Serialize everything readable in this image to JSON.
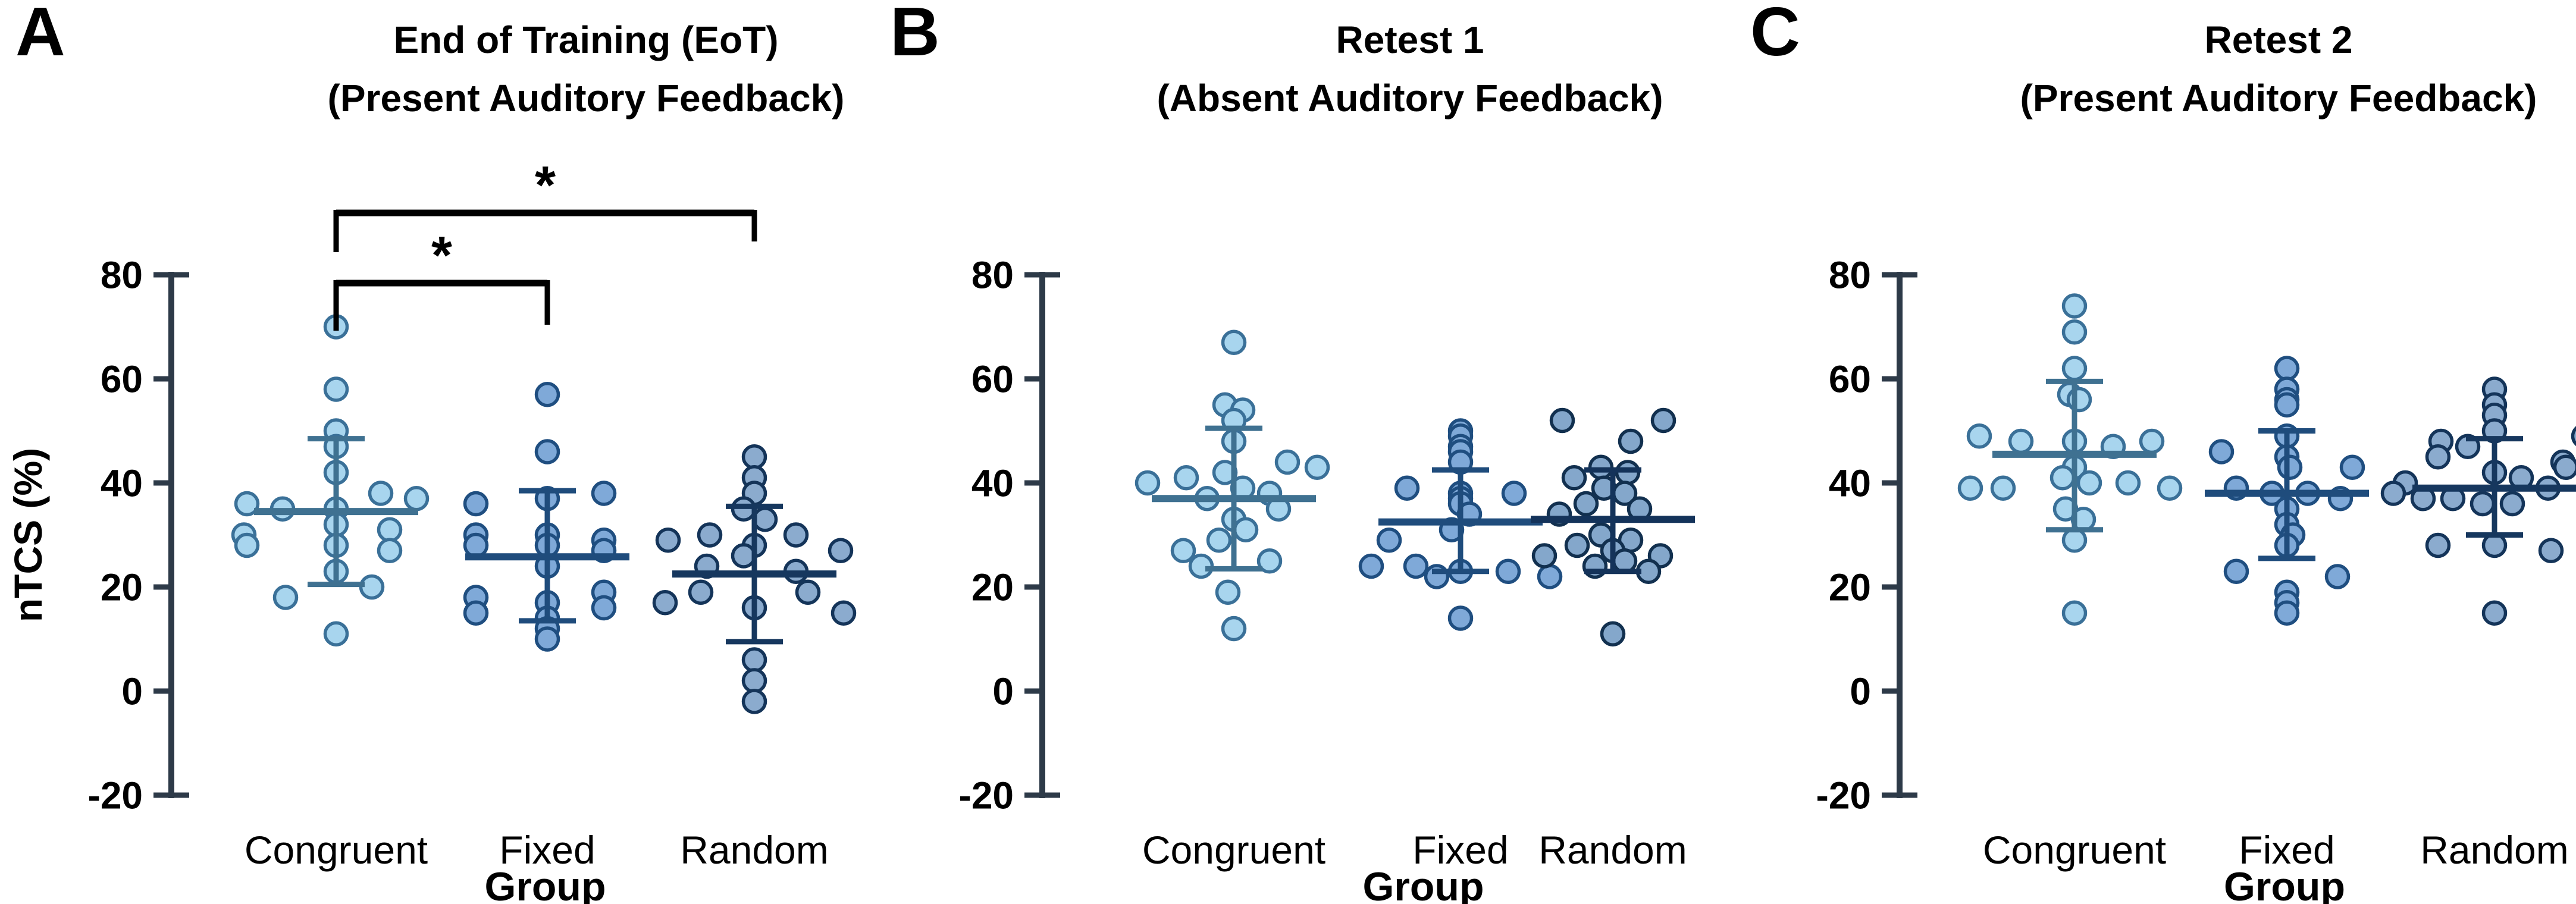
{
  "figure": {
    "background": "#ffffff",
    "axis_color": "#2d3a48",
    "bracket_color": "#000000"
  },
  "chart_data": [
    {
      "type": "scatter",
      "panel_letter": "A",
      "title": "End of Training (EoT)",
      "subtitle": "(Present Auditory Feedback)",
      "xlabel": "Group",
      "ylabel": "nTCS (%)",
      "ylim": [
        -20,
        80
      ],
      "yticks": [
        80,
        60,
        40,
        20,
        0,
        -20
      ],
      "grid": false,
      "categories": [
        "Congruent",
        "Fixed",
        "Random"
      ],
      "axis_color": "#2d3a48",
      "significance": [
        {
          "from": "Congruent",
          "to": "Fixed",
          "label": "*",
          "row": 1
        },
        {
          "from": "Congruent",
          "to": "Random",
          "label": "*",
          "row": 2
        }
      ],
      "series": [
        {
          "name": "Congruent",
          "mean": 34.5,
          "sd_high": 48.5,
          "sd_low": 20.5,
          "fill": "#a8d5ee",
          "stroke": "#3a7098",
          "line": "#3f7191",
          "points": [
            [
              70,
              0
            ],
            [
              58,
              0
            ],
            [
              50,
              0
            ],
            [
              47,
              0
            ],
            [
              42,
              0
            ],
            [
              38,
              75
            ],
            [
              37,
              135
            ],
            [
              36,
              -150
            ],
            [
              35,
              -90
            ],
            [
              35,
              0
            ],
            [
              32,
              0
            ],
            [
              31,
              90
            ],
            [
              30,
              -155
            ],
            [
              28,
              -150
            ],
            [
              28,
              0
            ],
            [
              27,
              90
            ],
            [
              23,
              0
            ],
            [
              20,
              60
            ],
            [
              18,
              -85
            ],
            [
              11,
              0
            ]
          ]
        },
        {
          "name": "Fixed",
          "mean": 25.8,
          "sd_high": 38.5,
          "sd_low": 13.5,
          "fill": "#7fa9d8",
          "stroke": "#1f4e80",
          "line": "#1f4c7c",
          "points": [
            [
              57,
              0
            ],
            [
              46,
              0
            ],
            [
              38,
              95
            ],
            [
              37,
              0
            ],
            [
              36,
              -120
            ],
            [
              30,
              -120
            ],
            [
              30,
              0
            ],
            [
              29,
              95
            ],
            [
              28,
              -120
            ],
            [
              28,
              0
            ],
            [
              27,
              95
            ],
            [
              24,
              0
            ],
            [
              19,
              95
            ],
            [
              18,
              -120
            ],
            [
              17,
              0
            ],
            [
              16,
              95
            ],
            [
              15,
              -120
            ],
            [
              14,
              0
            ],
            [
              12,
              0
            ],
            [
              10,
              0
            ]
          ]
        },
        {
          "name": "Random",
          "mean": 22.5,
          "sd_high": 35.5,
          "sd_low": 9.5,
          "fill": "#8babce",
          "stroke": "#143459",
          "line": "#16375e",
          "points": [
            [
              45,
              0
            ],
            [
              41,
              0
            ],
            [
              38,
              0
            ],
            [
              35,
              -18
            ],
            [
              33,
              18
            ],
            [
              30,
              -75
            ],
            [
              30,
              70
            ],
            [
              29,
              -145
            ],
            [
              28,
              0
            ],
            [
              27,
              145
            ],
            [
              26,
              -18
            ],
            [
              24,
              -80
            ],
            [
              23,
              70
            ],
            [
              19,
              -90
            ],
            [
              19,
              90
            ],
            [
              17,
              -150
            ],
            [
              16,
              0
            ],
            [
              15,
              150
            ],
            [
              6,
              0
            ],
            [
              2,
              0
            ],
            [
              -2,
              0
            ]
          ]
        }
      ]
    },
    {
      "type": "scatter",
      "panel_letter": "B",
      "title": "Retest 1",
      "subtitle": "(Absent Auditory Feedback)",
      "xlabel": "Group",
      "ylabel": "",
      "ylim": [
        -20,
        80
      ],
      "yticks": [
        80,
        60,
        40,
        20,
        0,
        -20
      ],
      "grid": false,
      "categories": [
        "Congruent",
        "Fixed",
        "Random"
      ],
      "axis_color": "#2d3a48",
      "significance": [],
      "series": [
        {
          "name": "Congruent",
          "mean": 37,
          "sd_high": 50.5,
          "sd_low": 23.5,
          "fill": "#a8d5ee",
          "stroke": "#3a7098",
          "line": "#3f7191",
          "points": [
            [
              67,
              0
            ],
            [
              55,
              -15
            ],
            [
              54,
              15
            ],
            [
              52,
              0
            ],
            [
              48,
              0
            ],
            [
              44,
              90
            ],
            [
              43,
              140
            ],
            [
              42,
              -15
            ],
            [
              41,
              -80
            ],
            [
              40,
              -145
            ],
            [
              39,
              15
            ],
            [
              38,
              60
            ],
            [
              37,
              -45
            ],
            [
              35,
              75
            ],
            [
              33,
              0
            ],
            [
              31,
              20
            ],
            [
              29,
              -25
            ],
            [
              27,
              -85
            ],
            [
              25,
              60
            ],
            [
              24,
              -55
            ],
            [
              19,
              -10
            ],
            [
              12,
              0
            ]
          ]
        },
        {
          "name": "Fixed",
          "mean": 32.5,
          "sd_high": 42.5,
          "sd_low": 23,
          "fill": "#7fa9d8",
          "stroke": "#1f4e80",
          "line": "#1f4c7c",
          "points": [
            [
              50,
              0
            ],
            [
              49,
              0
            ],
            [
              47,
              0
            ],
            [
              46,
              0
            ],
            [
              44,
              0
            ],
            [
              39,
              -90
            ],
            [
              38,
              0
            ],
            [
              38,
              90
            ],
            [
              37,
              0
            ],
            [
              36,
              0
            ],
            [
              34,
              15
            ],
            [
              31,
              -15
            ],
            [
              29,
              -120
            ],
            [
              24,
              -150
            ],
            [
              24,
              -75
            ],
            [
              23,
              0
            ],
            [
              23,
              80
            ],
            [
              22,
              -40
            ],
            [
              22,
              150
            ],
            [
              14,
              0
            ]
          ]
        },
        {
          "name": "Random",
          "mean": 33,
          "sd_high": 42.5,
          "sd_low": 23,
          "fill": "#84a7cb",
          "stroke": "#12304f",
          "line": "#14335a",
          "points": [
            [
              52,
              -85
            ],
            [
              52,
              85
            ],
            [
              48,
              30
            ],
            [
              43,
              -20
            ],
            [
              42,
              25
            ],
            [
              41,
              -65
            ],
            [
              39,
              -15
            ],
            [
              38,
              20
            ],
            [
              36,
              -45
            ],
            [
              35,
              45
            ],
            [
              34,
              -90
            ],
            [
              30,
              -20
            ],
            [
              29,
              30
            ],
            [
              28,
              -60
            ],
            [
              27,
              0
            ],
            [
              26,
              80
            ],
            [
              26,
              -115
            ],
            [
              25,
              20
            ],
            [
              24,
              -30
            ],
            [
              23,
              60
            ],
            [
              11,
              0
            ]
          ]
        }
      ]
    },
    {
      "type": "scatter",
      "panel_letter": "C",
      "title": "Retest 2",
      "subtitle": "(Present Auditory Feedback)",
      "xlabel": "Group",
      "ylabel": "",
      "ylim": [
        -20,
        80
      ],
      "yticks": [
        80,
        60,
        40,
        20,
        0,
        -20
      ],
      "grid": false,
      "categories": [
        "Congruent",
        "Fixed",
        "Random"
      ],
      "axis_color": "#2d3a48",
      "significance": [],
      "series": [
        {
          "name": "Congruent",
          "mean": 45.5,
          "sd_high": 59.5,
          "sd_low": 31,
          "fill": "#a8d5ee",
          "stroke": "#3a7098",
          "line": "#3f7191",
          "points": [
            [
              74,
              0
            ],
            [
              69,
              0
            ],
            [
              62,
              0
            ],
            [
              57,
              -8
            ],
            [
              56,
              8
            ],
            [
              49,
              -160
            ],
            [
              48,
              -90
            ],
            [
              48,
              0
            ],
            [
              47,
              65
            ],
            [
              48,
              130
            ],
            [
              43,
              0
            ],
            [
              41,
              -20
            ],
            [
              39,
              -175
            ],
            [
              39,
              -120
            ],
            [
              40,
              25
            ],
            [
              40,
              90
            ],
            [
              39,
              160
            ],
            [
              35,
              -15
            ],
            [
              33,
              15
            ],
            [
              29,
              0
            ],
            [
              15,
              0
            ]
          ]
        },
        {
          "name": "Fixed",
          "mean": 38,
          "sd_high": 50,
          "sd_low": 25.5,
          "fill": "#7fa9d8",
          "stroke": "#1f4e80",
          "line": "#1f4c7c",
          "points": [
            [
              62,
              0
            ],
            [
              58,
              0
            ],
            [
              56,
              0
            ],
            [
              55,
              0
            ],
            [
              49,
              0
            ],
            [
              46,
              -110
            ],
            [
              45,
              0
            ],
            [
              43,
              5
            ],
            [
              43,
              110
            ],
            [
              39,
              -85
            ],
            [
              38,
              -25
            ],
            [
              38,
              35
            ],
            [
              37,
              90
            ],
            [
              35,
              0
            ],
            [
              32,
              0
            ],
            [
              30,
              10
            ],
            [
              28,
              0
            ],
            [
              23,
              -85
            ],
            [
              22,
              85
            ],
            [
              19,
              0
            ],
            [
              17,
              0
            ],
            [
              15,
              0
            ]
          ]
        },
        {
          "name": "Random",
          "mean": 39,
          "sd_high": 48.5,
          "sd_low": 30,
          "fill": "#8babce",
          "stroke": "#143459",
          "line": "#16375e",
          "points": [
            [
              58,
              0
            ],
            [
              55,
              0
            ],
            [
              53,
              0
            ],
            [
              50,
              0
            ],
            [
              49,
              150
            ],
            [
              48,
              -90
            ],
            [
              47,
              -45
            ],
            [
              45,
              -95
            ],
            [
              44,
              115
            ],
            [
              43,
              120
            ],
            [
              42,
              0
            ],
            [
              41,
              45
            ],
            [
              40,
              -150
            ],
            [
              39,
              90
            ],
            [
              38,
              -170
            ],
            [
              37,
              -120
            ],
            [
              37,
              -70
            ],
            [
              36,
              -20
            ],
            [
              36,
              30
            ],
            [
              28,
              -95
            ],
            [
              28,
              0
            ],
            [
              27,
              95
            ],
            [
              15,
              0
            ]
          ]
        }
      ]
    }
  ]
}
